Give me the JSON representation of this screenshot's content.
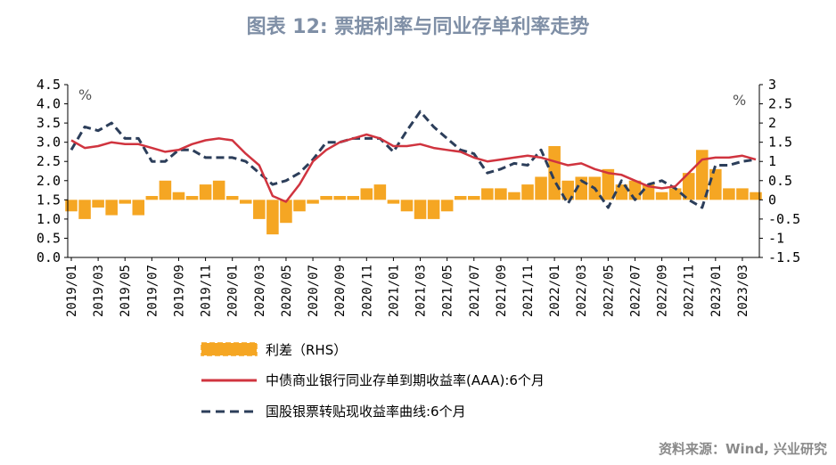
{
  "title": "图表 12: 票据利率与同业存单利率走势",
  "source": "资料来源：Wind, 兴业研究",
  "colors": {
    "spread": "#f5a623",
    "ncd": "#d0343f",
    "bill": "#2c3e5a",
    "title": "#7f8fa6"
  },
  "chart_data": {
    "type": "line",
    "unit_left": "%",
    "unit_right": "%",
    "ylim_left": [
      0.0,
      4.5
    ],
    "ylim_right": [
      -1.5,
      3
    ],
    "yticks_left": [
      "0.0",
      "0.5",
      "1.0",
      "1.5",
      "2.0",
      "2.5",
      "3.0",
      "3.5",
      "4.0",
      "4.5"
    ],
    "yticks_right": [
      "-1.5",
      "-1",
      "-0.5",
      "0",
      "0.5",
      "1",
      "1.5",
      "2",
      "2.5",
      "3"
    ],
    "xticks": [
      "2019/01",
      "2019/03",
      "2019/05",
      "2019/07",
      "2019/09",
      "2019/11",
      "2020/01",
      "2020/03",
      "2020/05",
      "2020/07",
      "2020/09",
      "2020/11",
      "2021/01",
      "2021/03",
      "2021/05",
      "2021/07",
      "2021/09",
      "2021/11",
      "2022/01",
      "2022/03",
      "2022/05",
      "2022/07",
      "2022/09",
      "2022/11",
      "2023/01",
      "2023/03"
    ],
    "x": [
      "2019/01",
      "2019/02",
      "2019/03",
      "2019/04",
      "2019/05",
      "2019/06",
      "2019/07",
      "2019/08",
      "2019/09",
      "2019/10",
      "2019/11",
      "2019/12",
      "2020/01",
      "2020/02",
      "2020/03",
      "2020/04",
      "2020/05",
      "2020/06",
      "2020/07",
      "2020/08",
      "2020/09",
      "2020/10",
      "2020/11",
      "2020/12",
      "2021/01",
      "2021/02",
      "2021/03",
      "2021/04",
      "2021/05",
      "2021/06",
      "2021/07",
      "2021/08",
      "2021/09",
      "2021/10",
      "2021/11",
      "2021/12",
      "2022/01",
      "2022/02",
      "2022/03",
      "2022/04",
      "2022/05",
      "2022/06",
      "2022/07",
      "2022/08",
      "2022/09",
      "2022/10",
      "2022/11",
      "2022/12",
      "2023/01",
      "2023/02",
      "2023/03",
      "2023/04"
    ],
    "series": [
      {
        "name": "利差（RHS）",
        "axis": "right",
        "style": "bar",
        "values": [
          -0.3,
          -0.5,
          -0.2,
          -0.4,
          -0.1,
          -0.4,
          0.1,
          0.5,
          0.2,
          0.1,
          0.4,
          0.5,
          0.1,
          -0.1,
          -0.5,
          -0.9,
          -0.6,
          -0.3,
          -0.1,
          0.1,
          0.1,
          0.1,
          0.3,
          0.4,
          -0.1,
          -0.3,
          -0.5,
          -0.5,
          -0.3,
          0.1,
          0.1,
          0.3,
          0.3,
          0.2,
          0.4,
          0.6,
          1.4,
          0.5,
          0.6,
          0.6,
          0.8,
          0.4,
          0.5,
          0.4,
          0.2,
          0.3,
          0.7,
          1.3,
          0.8,
          0.3,
          0.3,
          0.2
        ]
      },
      {
        "name": "中债商业银行同业存单到期收益率(AAA):6个月",
        "axis": "left",
        "style": "solid",
        "values": [
          3.05,
          2.85,
          2.9,
          3.0,
          2.95,
          2.95,
          2.85,
          2.75,
          2.8,
          2.95,
          3.05,
          3.1,
          3.05,
          2.7,
          2.4,
          1.6,
          1.45,
          1.9,
          2.5,
          2.8,
          3.0,
          3.1,
          3.2,
          3.1,
          2.9,
          2.9,
          2.95,
          2.85,
          2.8,
          2.75,
          2.6,
          2.5,
          2.55,
          2.6,
          2.65,
          2.6,
          2.5,
          2.4,
          2.45,
          2.3,
          2.2,
          2.15,
          2.0,
          1.85,
          1.8,
          1.85,
          2.2,
          2.55,
          2.6,
          2.6,
          2.65,
          2.55
        ]
      },
      {
        "name": "国股银票转贴现收益率曲线:6个月",
        "axis": "left",
        "style": "dashed",
        "values": [
          2.8,
          3.4,
          3.3,
          3.5,
          3.1,
          3.1,
          2.5,
          2.5,
          2.8,
          2.8,
          2.6,
          2.6,
          2.6,
          2.5,
          2.2,
          1.9,
          2.0,
          2.2,
          2.55,
          3.0,
          3.0,
          3.1,
          3.1,
          3.1,
          2.75,
          3.3,
          3.8,
          3.4,
          3.1,
          2.8,
          2.7,
          2.2,
          2.3,
          2.45,
          2.4,
          2.8,
          2.0,
          1.4,
          2.0,
          1.8,
          1.3,
          2.0,
          1.5,
          1.9,
          2.0,
          1.8,
          1.5,
          1.3,
          2.4,
          2.4,
          2.5,
          2.55
        ]
      }
    ],
    "legend": [
      "利差（RHS）",
      "中债商业银行同业存单到期收益率(AAA):6个月",
      "国股银票转贴现收益率曲线:6个月"
    ]
  }
}
